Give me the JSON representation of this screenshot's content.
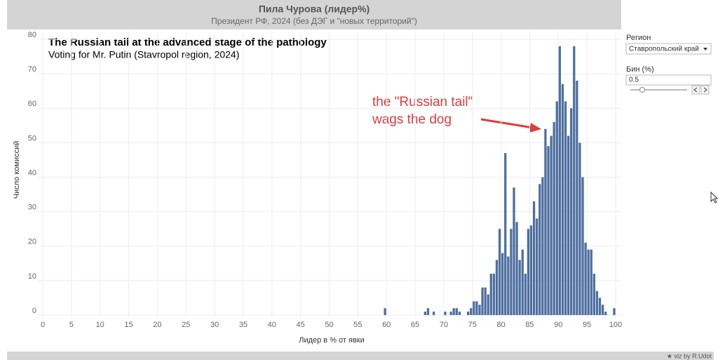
{
  "header": {
    "title": "Пила Чурова (лидер%)",
    "subtitle": "Президент РФ, 2024 (без ДЭГ и \"новых территорий\")"
  },
  "chart_data": {
    "type": "histogram",
    "annotation_title": "The Russian tail at the advanced stage of the pathology",
    "annotation_subtitle": "Voting for Mr. Putin (Stavropol region, 2024)",
    "callout": [
      "the \"Russian tail\"",
      "wags the dog"
    ],
    "x_label": "Лидер в % от явки",
    "y_label": "Число комиссий",
    "color": "#4e6f9f",
    "bins": [
      59.5,
      60,
      60.5,
      61,
      61.5,
      62,
      62.5,
      63,
      63.5,
      64,
      64.5,
      65,
      65.5,
      66,
      66.5,
      67,
      67.5,
      68,
      68.5,
      69,
      69.5,
      70,
      70.5,
      71,
      71.5,
      72,
      72.5,
      73,
      73.5,
      74,
      74.5,
      75,
      75.5,
      76,
      76.5,
      77,
      77.5,
      78,
      78.5,
      79,
      79.5,
      80,
      80.5,
      81,
      81.5,
      82,
      82.5,
      83,
      83.5,
      84,
      84.5,
      85,
      85.5,
      86,
      86.5,
      87,
      87.5,
      88,
      88.5,
      89,
      89.5,
      90,
      90.5,
      91,
      91.5,
      92,
      92.5,
      93,
      93.5,
      94,
      94.5,
      95,
      95.5,
      96,
      96.5,
      97,
      97.5,
      98,
      98.5,
      99,
      99.5,
      100
    ],
    "values": [
      2,
      0,
      0,
      0,
      0,
      0,
      0,
      0,
      0,
      0,
      0,
      0,
      0,
      0,
      1,
      2,
      0,
      1,
      0,
      0,
      0,
      1,
      0,
      1,
      2,
      2,
      1,
      0,
      0,
      1,
      2,
      4,
      4,
      3,
      8,
      8,
      6,
      12,
      12,
      16,
      25,
      18,
      47,
      17,
      25,
      37,
      27,
      16,
      19,
      12,
      25,
      26,
      33,
      28,
      38,
      40,
      54,
      49,
      52,
      56,
      62,
      78,
      67,
      62,
      52,
      60,
      78,
      68,
      50,
      40,
      21,
      19,
      19,
      12,
      7,
      5,
      3,
      1,
      0,
      0,
      2
    ],
    "xlim": [
      0,
      100
    ],
    "xticks": [
      0,
      5,
      10,
      15,
      20,
      25,
      30,
      35,
      40,
      45,
      50,
      55,
      60,
      65,
      70,
      75,
      80,
      85,
      90,
      95,
      100
    ],
    "ylim": [
      0,
      80
    ],
    "yticks": [
      0,
      10,
      20,
      30,
      40,
      50,
      60,
      70,
      80
    ],
    "grid": true
  },
  "controls": {
    "region_label": "Регион",
    "region_value": "Ставропольский край",
    "bin_label": "Бин (%)",
    "bin_value": "0.5"
  },
  "footer": "★ viz by R.Udot"
}
